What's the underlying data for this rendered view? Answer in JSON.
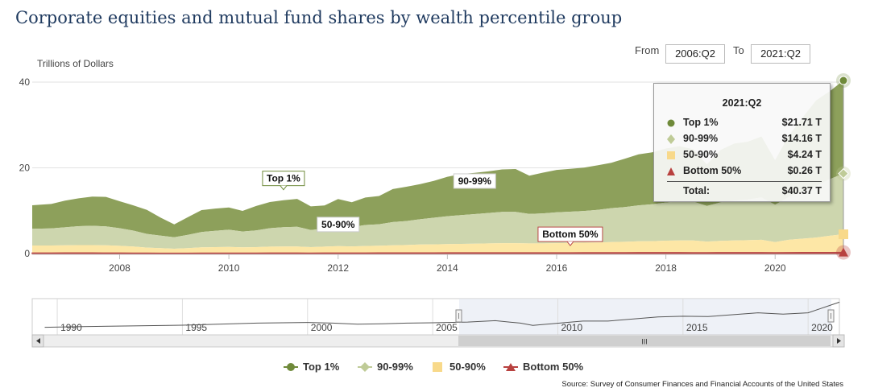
{
  "title": "Corporate equities and mutual fund shares by wealth percentile group",
  "range": {
    "from_label": "From",
    "from_value": "2006:Q2",
    "to_label": "To",
    "to_value": "2021:Q2"
  },
  "source": "Source: Survey of Consumer Finances and Financial Accounts of the United States",
  "navigator": {
    "year_labels": [
      "1990",
      "1995",
      "2000",
      "2005",
      "2010",
      "2015",
      "2020"
    ],
    "scroll_label": "III",
    "overall_series": [
      {
        "year": 1989.5,
        "value": 4
      },
      {
        "year": 1991,
        "value": 5
      },
      {
        "year": 1993,
        "value": 6
      },
      {
        "year": 1995,
        "value": 7
      },
      {
        "year": 1997,
        "value": 9
      },
      {
        "year": 1998,
        "value": 10
      },
      {
        "year": 2000,
        "value": 11
      },
      {
        "year": 2001,
        "value": 10
      },
      {
        "year": 2002,
        "value": 8.5
      },
      {
        "year": 2003,
        "value": 9
      },
      {
        "year": 2004,
        "value": 10
      },
      {
        "year": 2005,
        "value": 10.5
      },
      {
        "year": 2006.4,
        "value": 11.5
      },
      {
        "year": 2007.5,
        "value": 13.5
      },
      {
        "year": 2008.5,
        "value": 10
      },
      {
        "year": 2009,
        "value": 6.7
      },
      {
        "year": 2011,
        "value": 13
      },
      {
        "year": 2012,
        "value": 13
      },
      {
        "year": 2014,
        "value": 19
      },
      {
        "year": 2015,
        "value": 20
      },
      {
        "year": 2016,
        "value": 19.5
      },
      {
        "year": 2018,
        "value": 25
      },
      {
        "year": 2019,
        "value": 23
      },
      {
        "year": 2020,
        "value": 25
      },
      {
        "year": 2021.25,
        "value": 40.37
      }
    ]
  },
  "tooltip": {
    "date": "2021:Q2",
    "rows": [
      {
        "label": "Top 1%",
        "value": "$21.71 T"
      },
      {
        "label": "90-99%",
        "value": "$14.16 T"
      },
      {
        "label": "50-90%",
        "value": "$4.24 T"
      },
      {
        "label": "Bottom 50%",
        "value": "$0.26 T"
      }
    ],
    "total_label": "Total:",
    "total_value": "$40.37 T"
  },
  "colors": {
    "top1": "#8da05b",
    "p90_99": "#cdd6ae",
    "p50_90": "#fde7a6",
    "bottom50": "#b94a48",
    "top1_marker": "#6f8a3a",
    "p90_99_marker": "#bfcb97",
    "p50_90_marker": "#f8d98a",
    "bottom50_marker": "#b8413f"
  },
  "chart_data": {
    "type": "area",
    "stacked": true,
    "title": "Corporate equities and mutual fund shares by wealth percentile group",
    "ylabel": "Trillions of Dollars",
    "ylim": [
      0,
      40
    ],
    "yticks": [
      0,
      20,
      40
    ],
    "xlim": [
      2006.4,
      2021.25
    ],
    "xticks": [
      2008,
      2010,
      2012,
      2014,
      2016,
      2018,
      2020
    ],
    "grid": true,
    "legend_position": "bottom",
    "x": [
      2006.4,
      2006.75,
      2007.0,
      2007.25,
      2007.5,
      2007.75,
      2008.0,
      2008.25,
      2008.5,
      2008.75,
      2009.0,
      2009.25,
      2009.5,
      2009.75,
      2010.0,
      2010.25,
      2010.5,
      2010.75,
      2011.0,
      2011.25,
      2011.5,
      2011.75,
      2012.0,
      2012.25,
      2012.5,
      2012.75,
      2013.0,
      2013.25,
      2013.5,
      2013.75,
      2014.0,
      2014.25,
      2014.5,
      2014.75,
      2015.0,
      2015.25,
      2015.5,
      2015.75,
      2016.0,
      2016.25,
      2016.5,
      2016.75,
      2017.0,
      2017.25,
      2017.5,
      2017.75,
      2018.0,
      2018.25,
      2018.5,
      2018.75,
      2019.0,
      2019.25,
      2019.5,
      2019.75,
      2020.0,
      2020.25,
      2020.5,
      2020.75,
      2021.0,
      2021.25
    ],
    "series": [
      {
        "name": "Bottom 50%",
        "values": [
          0.12,
          0.12,
          0.13,
          0.13,
          0.13,
          0.12,
          0.11,
          0.1,
          0.09,
          0.08,
          0.07,
          0.08,
          0.09,
          0.1,
          0.1,
          0.1,
          0.1,
          0.11,
          0.11,
          0.11,
          0.1,
          0.11,
          0.12,
          0.12,
          0.12,
          0.13,
          0.14,
          0.14,
          0.15,
          0.15,
          0.16,
          0.16,
          0.16,
          0.17,
          0.17,
          0.17,
          0.16,
          0.17,
          0.17,
          0.17,
          0.18,
          0.18,
          0.19,
          0.19,
          0.2,
          0.2,
          0.2,
          0.2,
          0.19,
          0.19,
          0.2,
          0.2,
          0.21,
          0.21,
          0.18,
          0.21,
          0.22,
          0.23,
          0.25,
          0.26
        ]
      },
      {
        "name": "50-90%",
        "values": [
          1.75,
          1.75,
          1.8,
          1.85,
          1.85,
          1.8,
          1.7,
          1.55,
          1.3,
          1.2,
          1.05,
          1.2,
          1.35,
          1.4,
          1.45,
          1.35,
          1.4,
          1.5,
          1.55,
          1.55,
          1.4,
          1.5,
          1.6,
          1.55,
          1.65,
          1.7,
          1.8,
          1.85,
          1.95,
          2.0,
          2.05,
          2.1,
          2.15,
          2.2,
          2.25,
          2.25,
          2.2,
          2.2,
          2.25,
          2.3,
          2.35,
          2.4,
          2.5,
          2.55,
          2.65,
          2.7,
          2.8,
          2.85,
          2.85,
          2.6,
          2.75,
          2.85,
          2.9,
          3.0,
          2.5,
          3.0,
          3.25,
          3.5,
          3.9,
          4.24
        ]
      },
      {
        "name": "90-99%",
        "values": [
          3.9,
          4.0,
          4.2,
          4.4,
          4.5,
          4.4,
          4.1,
          3.7,
          3.2,
          2.9,
          2.7,
          3.1,
          3.6,
          3.8,
          4.0,
          3.7,
          3.9,
          4.3,
          4.5,
          4.6,
          4.0,
          4.2,
          4.6,
          4.5,
          4.9,
          5.0,
          5.4,
          5.6,
          5.9,
          6.2,
          6.5,
          6.7,
          6.9,
          7.1,
          7.3,
          7.3,
          6.9,
          7.0,
          7.2,
          7.3,
          7.4,
          7.6,
          7.9,
          8.1,
          8.4,
          8.6,
          8.9,
          9.1,
          9.1,
          8.3,
          9.0,
          9.3,
          9.5,
          9.9,
          8.7,
          10.0,
          11.0,
          12.0,
          13.2,
          14.16
        ]
      },
      {
        "name": "Top 1%",
        "values": [
          5.5,
          5.7,
          6.2,
          6.5,
          6.8,
          6.9,
          6.3,
          5.9,
          5.6,
          4.2,
          3.0,
          4.1,
          5.1,
          5.2,
          5.2,
          4.8,
          5.7,
          6.1,
          6.3,
          6.5,
          5.5,
          5.4,
          6.4,
          5.8,
          6.4,
          6.6,
          7.7,
          8.0,
          8.2,
          8.6,
          9.2,
          9.6,
          9.6,
          9.7,
          9.9,
          10.0,
          8.9,
          9.5,
          9.9,
          10.0,
          10.1,
          10.4,
          10.6,
          11.3,
          11.9,
          12.1,
          12.6,
          12.9,
          12.2,
          9.7,
          12.2,
          13.3,
          13.5,
          14.2,
          10.4,
          14.3,
          17.2,
          20.0,
          20.5,
          21.71
        ]
      }
    ],
    "annotations": [
      "Top 1%",
      "90-99%",
      "50-90%",
      "Bottom 50%"
    ],
    "legend": [
      "Top 1%",
      "90-99%",
      "50-90%",
      "Bottom 50%"
    ]
  }
}
